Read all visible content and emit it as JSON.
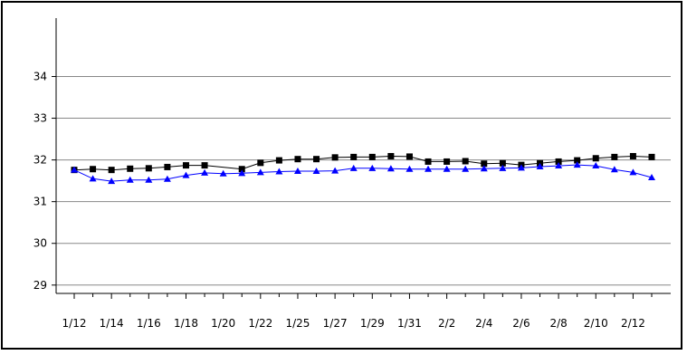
{
  "chart_data": {
    "type": "line",
    "title": "",
    "xlabel": "",
    "ylabel": "",
    "ylim": [
      28.8,
      35.4
    ],
    "yticks": [
      29,
      30,
      31,
      32,
      33,
      34
    ],
    "xtick_labels": [
      "1/12",
      "1/14",
      "1/16",
      "1/18",
      "1/20",
      "1/22",
      "1/25",
      "1/27",
      "1/29",
      "1/31",
      "2/2",
      "2/4",
      "2/6",
      "2/8",
      "2/10",
      "2/12"
    ],
    "grid": "horizontal",
    "legend": "none",
    "x_count": 32,
    "series": [
      {
        "color": "#000000",
        "marker": "square",
        "points": [
          {
            "i": 0,
            "y": 31.76
          },
          {
            "i": 1,
            "y": 31.78
          },
          {
            "i": 2,
            "y": 31.76
          },
          {
            "i": 3,
            "y": 31.79
          },
          {
            "i": 4,
            "y": 31.8
          },
          {
            "i": 5,
            "y": 31.83
          },
          {
            "i": 6,
            "y": 31.87
          },
          {
            "i": 7,
            "y": 31.87
          },
          {
            "i": 9,
            "y": 31.78
          },
          {
            "i": 10,
            "y": 31.93
          },
          {
            "i": 11,
            "y": 31.99
          },
          {
            "i": 12,
            "y": 32.02
          },
          {
            "i": 13,
            "y": 32.02
          },
          {
            "i": 14,
            "y": 32.06
          },
          {
            "i": 15,
            "y": 32.07
          },
          {
            "i": 16,
            "y": 32.07
          },
          {
            "i": 17,
            "y": 32.09
          },
          {
            "i": 18,
            "y": 32.08
          },
          {
            "i": 19,
            "y": 31.96
          },
          {
            "i": 20,
            "y": 31.96
          },
          {
            "i": 21,
            "y": 31.97
          },
          {
            "i": 22,
            "y": 31.91
          },
          {
            "i": 23,
            "y": 31.92
          },
          {
            "i": 24,
            "y": 31.88
          },
          {
            "i": 25,
            "y": 31.92
          },
          {
            "i": 26,
            "y": 31.96
          },
          {
            "i": 27,
            "y": 31.99
          },
          {
            "i": 28,
            "y": 32.04
          },
          {
            "i": 29,
            "y": 32.07
          },
          {
            "i": 30,
            "y": 32.09
          },
          {
            "i": 31,
            "y": 32.07
          }
        ]
      },
      {
        "color": "#0000ff",
        "marker": "triangle",
        "points": [
          {
            "i": 0,
            "y": 31.76
          },
          {
            "i": 1,
            "y": 31.55
          },
          {
            "i": 2,
            "y": 31.49
          },
          {
            "i": 3,
            "y": 31.52
          },
          {
            "i": 4,
            "y": 31.52
          },
          {
            "i": 5,
            "y": 31.54
          },
          {
            "i": 6,
            "y": 31.63
          },
          {
            "i": 7,
            "y": 31.69
          },
          {
            "i": 8,
            "y": 31.67
          },
          {
            "i": 9,
            "y": 31.68
          },
          {
            "i": 10,
            "y": 31.7
          },
          {
            "i": 11,
            "y": 31.72
          },
          {
            "i": 12,
            "y": 31.73
          },
          {
            "i": 13,
            "y": 31.73
          },
          {
            "i": 14,
            "y": 31.74
          },
          {
            "i": 15,
            "y": 31.8
          },
          {
            "i": 16,
            "y": 31.8
          },
          {
            "i": 17,
            "y": 31.79
          },
          {
            "i": 18,
            "y": 31.78
          },
          {
            "i": 19,
            "y": 31.78
          },
          {
            "i": 20,
            "y": 31.78
          },
          {
            "i": 21,
            "y": 31.78
          },
          {
            "i": 22,
            "y": 31.79
          },
          {
            "i": 23,
            "y": 31.8
          },
          {
            "i": 24,
            "y": 31.81
          },
          {
            "i": 25,
            "y": 31.84
          },
          {
            "i": 26,
            "y": 31.86
          },
          {
            "i": 27,
            "y": 31.88
          },
          {
            "i": 28,
            "y": 31.86
          },
          {
            "i": 29,
            "y": 31.77
          },
          {
            "i": 30,
            "y": 31.7
          },
          {
            "i": 31,
            "y": 31.58
          }
        ]
      }
    ]
  }
}
